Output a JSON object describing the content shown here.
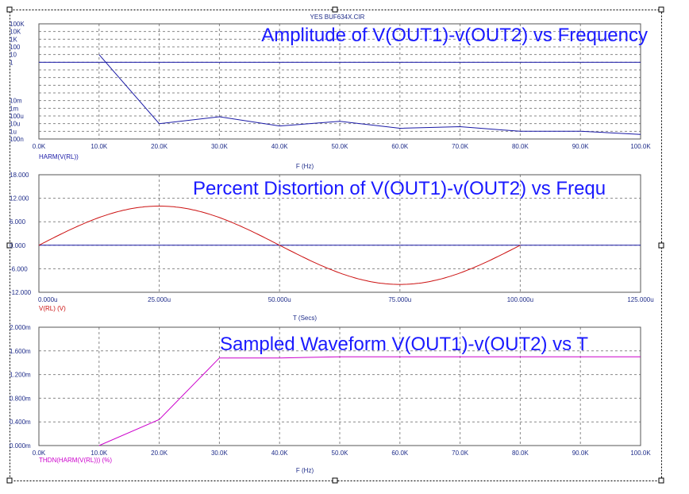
{
  "file_label": "YES  BUF634X.CIR",
  "colors": {
    "axis_text": "#1f2d8a",
    "grid": "#888888",
    "trace_blue": "#1a1aa6",
    "trace_red": "#cc1111",
    "trace_magenta": "#cc00cc",
    "title": "#1a1aff",
    "selection": "#000000"
  },
  "chart_data": [
    {
      "type": "line",
      "title": "Amplitude of V(OUT1)-v(OUT2) vs Frequency",
      "xlabel": "F (Hz)",
      "trace_label": "HARM(V(RL))",
      "xlim": [
        0,
        100000
      ],
      "x_ticks": [
        "0.0K",
        "10.0K",
        "20.0K",
        "30.0K",
        "40.0K",
        "50.0K",
        "60.0K",
        "70.0K",
        "80.0K",
        "90.0K",
        "100.0K"
      ],
      "y_scale": "log",
      "ylim_decades": [
        -10,
        5
      ],
      "y_ticks": [
        "100K",
        "10K",
        "1K",
        "100",
        "10",
        "1",
        "",
        "10m",
        "1m",
        "100u",
        "10u",
        "1u",
        "100n"
      ],
      "y_tick_exponents": [
        5,
        4,
        3,
        2,
        1,
        0,
        -1,
        -5,
        -6,
        -7,
        -8,
        -9,
        -10
      ],
      "reference_line_y": 1,
      "series": [
        {
          "x": [
            10000,
            20000,
            30000,
            40000,
            50000,
            60000,
            70000,
            80000,
            90000,
            100000
          ],
          "y_log10": [
            1.0,
            -8.0,
            -7.1,
            -8.3,
            -7.7,
            -8.6,
            -8.4,
            -9.0,
            -9.0,
            -9.4
          ]
        }
      ]
    },
    {
      "type": "line",
      "title": "Percent Distortion of V(OUT1)-v(OUT2) vs Frequ",
      "xlabel": "T (Secs)",
      "trace_label": "V(RL) (V)",
      "xlim": [
        0,
        125
      ],
      "x_ticks": [
        "0.000u",
        "25.000u",
        "50.000u",
        "75.000u",
        "100.000u",
        "125.000u"
      ],
      "ylim": [
        -12,
        18
      ],
      "y_ticks": [
        "18.000",
        "12.000",
        "6.000",
        "0.000",
        "-6.000",
        "-12.000"
      ],
      "reference_line_y": 0,
      "series": [
        {
          "waveform": "sine",
          "amplitude": 10,
          "period_u": 100,
          "x_start_u": 0,
          "x_end_u": 100
        }
      ]
    },
    {
      "type": "line",
      "title": "Sampled Waveform  V(OUT1)-v(OUT2) vs T",
      "xlabel": "F (Hz)",
      "trace_label": "THDN(HARM(V(RL))) (%)",
      "xlim": [
        0,
        100000
      ],
      "x_ticks": [
        "0.0K",
        "10.0K",
        "20.0K",
        "30.0K",
        "40.0K",
        "50.0K",
        "60.0K",
        "70.0K",
        "80.0K",
        "90.0K",
        "100.0K"
      ],
      "ylim": [
        0,
        2.0
      ],
      "y_ticks": [
        "2.000m",
        "1.600m",
        "1.200m",
        "0.800m",
        "0.400m",
        "0.000m"
      ],
      "series": [
        {
          "x": [
            10000,
            20000,
            30000,
            40000,
            50000,
            60000,
            70000,
            80000,
            90000,
            100000
          ],
          "y": [
            0.0,
            0.44,
            1.48,
            1.48,
            1.5,
            1.5,
            1.5,
            1.5,
            1.5,
            1.5
          ]
        }
      ]
    }
  ]
}
